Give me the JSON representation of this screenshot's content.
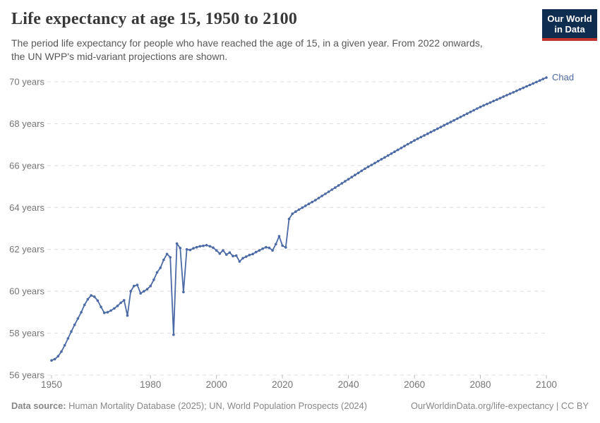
{
  "header": {
    "title": "Life expectancy at age 15, 1950 to 2100",
    "subtitle_line1": "The period life expectancy for people who have reached the age of 15, in a given year. From 2022 onwards,",
    "subtitle_line2": "the UN WPP's mid-variant projections are shown.",
    "logo": {
      "line1": "Our World",
      "line2": "in Data"
    }
  },
  "footer": {
    "source_label": "Data source:",
    "source_text": " Human Mortality Database (2025); UN, World Population Prospects (2024)",
    "right_text": "OurWorldinData.org/life-expectancy | CC BY"
  },
  "colors": {
    "line": "#4c6aa5",
    "grid": "#dddddd",
    "axis_text": "#757575",
    "title_text": "#383838",
    "subtitle_text": "#575757",
    "footer_text": "#878787",
    "logo_bg": "#0f2d4e",
    "logo_accent": "#bf352d"
  },
  "chart_data": {
    "type": "line",
    "title": "Life expectancy at age 15, 1950 to 2100",
    "unit": "years",
    "xlabel": "",
    "ylabel": "",
    "grid": true,
    "legend_position": "line-end-label",
    "xlim": [
      1950,
      2100
    ],
    "ylim": [
      56,
      70
    ],
    "x_ticks": [
      1950,
      1980,
      2000,
      2020,
      2040,
      2060,
      2080,
      2100
    ],
    "y_ticks": [
      {
        "value": 56,
        "label": "56 years"
      },
      {
        "value": 58,
        "label": "58 years"
      },
      {
        "value": 60,
        "label": "60 years"
      },
      {
        "value": 62,
        "label": "62 years"
      },
      {
        "value": 64,
        "label": "64 years"
      },
      {
        "value": 66,
        "label": "66 years"
      },
      {
        "value": 68,
        "label": "68 years"
      },
      {
        "value": 70,
        "label": "70 years"
      }
    ],
    "projection_start": 2022,
    "series": [
      {
        "name": "Chad",
        "color": "#4c6aa5",
        "points": [
          [
            1950,
            56.7
          ],
          [
            1951,
            56.76
          ],
          [
            1952,
            56.9
          ],
          [
            1953,
            57.12
          ],
          [
            1954,
            57.42
          ],
          [
            1955,
            57.75
          ],
          [
            1956,
            58.08
          ],
          [
            1957,
            58.4
          ],
          [
            1958,
            58.7
          ],
          [
            1959,
            59.0
          ],
          [
            1960,
            59.35
          ],
          [
            1961,
            59.62
          ],
          [
            1962,
            59.8
          ],
          [
            1963,
            59.74
          ],
          [
            1964,
            59.55
          ],
          [
            1965,
            59.25
          ],
          [
            1966,
            58.97
          ],
          [
            1967,
            59.0
          ],
          [
            1968,
            59.08
          ],
          [
            1969,
            59.18
          ],
          [
            1970,
            59.3
          ],
          [
            1971,
            59.45
          ],
          [
            1972,
            59.57
          ],
          [
            1973,
            58.84
          ],
          [
            1974,
            60.0
          ],
          [
            1975,
            60.25
          ],
          [
            1976,
            60.3
          ],
          [
            1977,
            59.9
          ],
          [
            1978,
            60.0
          ],
          [
            1979,
            60.1
          ],
          [
            1980,
            60.25
          ],
          [
            1981,
            60.55
          ],
          [
            1982,
            60.9
          ],
          [
            1983,
            61.12
          ],
          [
            1984,
            61.5
          ],
          [
            1985,
            61.78
          ],
          [
            1986,
            61.62
          ],
          [
            1987,
            57.93
          ],
          [
            1988,
            62.28
          ],
          [
            1989,
            62.06
          ],
          [
            1990,
            59.96
          ],
          [
            1991,
            62.0
          ],
          [
            1992,
            61.97
          ],
          [
            1993,
            62.05
          ],
          [
            1994,
            62.1
          ],
          [
            1995,
            62.15
          ],
          [
            1996,
            62.17
          ],
          [
            1997,
            62.2
          ],
          [
            1998,
            62.15
          ],
          [
            1999,
            62.08
          ],
          [
            2000,
            61.95
          ],
          [
            2001,
            61.8
          ],
          [
            2002,
            61.95
          ],
          [
            2003,
            61.75
          ],
          [
            2004,
            61.85
          ],
          [
            2005,
            61.68
          ],
          [
            2006,
            61.7
          ],
          [
            2007,
            61.42
          ],
          [
            2008,
            61.58
          ],
          [
            2009,
            61.65
          ],
          [
            2010,
            61.73
          ],
          [
            2011,
            61.78
          ],
          [
            2012,
            61.87
          ],
          [
            2013,
            61.95
          ],
          [
            2014,
            62.03
          ],
          [
            2015,
            62.1
          ],
          [
            2016,
            62.07
          ],
          [
            2017,
            61.95
          ],
          [
            2018,
            62.25
          ],
          [
            2019,
            62.63
          ],
          [
            2020,
            62.18
          ],
          [
            2021,
            62.09
          ],
          [
            2022,
            63.45
          ],
          [
            2023,
            63.7
          ],
          [
            2024,
            63.8
          ],
          [
            2025,
            63.9
          ],
          [
            2026,
            63.99
          ],
          [
            2027,
            64.08
          ],
          [
            2028,
            64.17
          ],
          [
            2029,
            64.26
          ],
          [
            2030,
            64.35
          ],
          [
            2031,
            64.45
          ],
          [
            2032,
            64.55
          ],
          [
            2033,
            64.65
          ],
          [
            2034,
            64.75
          ],
          [
            2035,
            64.85
          ],
          [
            2036,
            64.95
          ],
          [
            2037,
            65.05
          ],
          [
            2038,
            65.15
          ],
          [
            2039,
            65.25
          ],
          [
            2040,
            65.35
          ],
          [
            2041,
            65.45
          ],
          [
            2042,
            65.55
          ],
          [
            2043,
            65.65
          ],
          [
            2044,
            65.75
          ],
          [
            2045,
            65.85
          ],
          [
            2046,
            65.94
          ],
          [
            2047,
            66.03
          ],
          [
            2048,
            66.12
          ],
          [
            2049,
            66.21
          ],
          [
            2050,
            66.3
          ],
          [
            2051,
            66.39
          ],
          [
            2052,
            66.48
          ],
          [
            2053,
            66.57
          ],
          [
            2054,
            66.66
          ],
          [
            2055,
            66.75
          ],
          [
            2056,
            66.84
          ],
          [
            2057,
            66.93
          ],
          [
            2058,
            67.02
          ],
          [
            2059,
            67.11
          ],
          [
            2060,
            67.2
          ],
          [
            2061,
            67.28
          ],
          [
            2062,
            67.36
          ],
          [
            2063,
            67.44
          ],
          [
            2064,
            67.52
          ],
          [
            2065,
            67.6
          ],
          [
            2066,
            67.68
          ],
          [
            2067,
            67.76
          ],
          [
            2068,
            67.84
          ],
          [
            2069,
            67.92
          ],
          [
            2070,
            68.0
          ],
          [
            2071,
            68.08
          ],
          [
            2072,
            68.16
          ],
          [
            2073,
            68.24
          ],
          [
            2074,
            68.32
          ],
          [
            2075,
            68.4
          ],
          [
            2076,
            68.48
          ],
          [
            2077,
            68.56
          ],
          [
            2078,
            68.64
          ],
          [
            2079,
            68.72
          ],
          [
            2080,
            68.8
          ],
          [
            2081,
            68.87
          ],
          [
            2082,
            68.94
          ],
          [
            2083,
            69.01
          ],
          [
            2084,
            69.08
          ],
          [
            2085,
            69.15
          ],
          [
            2086,
            69.22
          ],
          [
            2087,
            69.29
          ],
          [
            2088,
            69.36
          ],
          [
            2089,
            69.43
          ],
          [
            2090,
            69.5
          ],
          [
            2091,
            69.57
          ],
          [
            2092,
            69.64
          ],
          [
            2093,
            69.71
          ],
          [
            2094,
            69.78
          ],
          [
            2095,
            69.85
          ],
          [
            2096,
            69.92
          ],
          [
            2097,
            69.99
          ],
          [
            2098,
            70.06
          ],
          [
            2099,
            70.13
          ],
          [
            2100,
            70.2
          ]
        ]
      }
    ]
  }
}
